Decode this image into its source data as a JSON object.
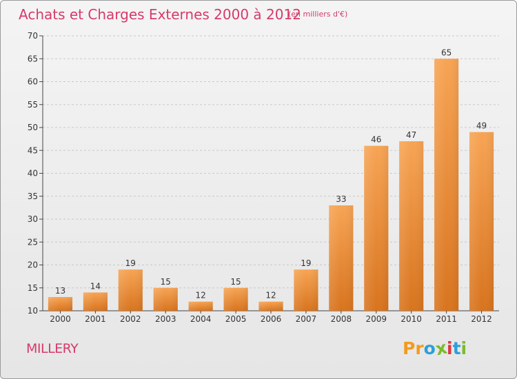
{
  "chart_data": {
    "type": "bar",
    "title": "Achats et Charges Externes 2000 à 2012",
    "subtitle": "(en milliers d'€)",
    "categories": [
      "2000",
      "2001",
      "2002",
      "2003",
      "2004",
      "2005",
      "2006",
      "2007",
      "2008",
      "2009",
      "2010",
      "2011",
      "2012"
    ],
    "values": [
      13,
      14,
      19,
      15,
      12,
      15,
      12,
      19,
      33,
      46,
      47,
      65,
      49
    ],
    "ylim": [
      10,
      70
    ],
    "yticks": [
      10,
      15,
      20,
      25,
      30,
      35,
      40,
      45,
      50,
      55,
      60,
      65,
      70
    ],
    "grid": true,
    "bar_color_top": "#f7a454",
    "bar_color_bottom": "#d8741e"
  },
  "footer": {
    "city": "MILLERY",
    "logo_letters": [
      "P",
      "r",
      "o",
      "x",
      "i",
      "t",
      "i"
    ],
    "logo_colors": [
      "#f39a1e",
      "#f39a1e",
      "#2e9fd8",
      "#7dbb2c",
      "#e2343f",
      "#2e9fd8",
      "#7dbb2c"
    ]
  },
  "colors": {
    "title": "#d63a6a",
    "axis": "#444444",
    "grid": "#c8c8c8"
  }
}
